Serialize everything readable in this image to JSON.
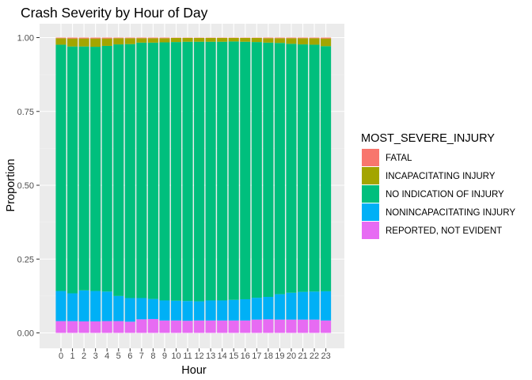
{
  "chart_data": {
    "type": "bar",
    "stacked": true,
    "title": "Crash Severity by Hour of Day",
    "xlabel": "Hour",
    "ylabel": "Proportion",
    "ylim": [
      0,
      1
    ],
    "yticks": [
      0,
      0.25,
      0.5,
      0.75,
      1
    ],
    "ytick_labels": [
      "0.00",
      "0.25",
      "0.50",
      "0.75",
      "1.00"
    ],
    "grid": true,
    "legend_position": "right",
    "legend_title": "MOST_SEVERE_INJURY",
    "categories": [
      "0",
      "1",
      "2",
      "3",
      "4",
      "5",
      "6",
      "7",
      "8",
      "9",
      "10",
      "11",
      "12",
      "13",
      "14",
      "15",
      "16",
      "17",
      "18",
      "19",
      "20",
      "21",
      "22",
      "23"
    ],
    "series": [
      {
        "name": "FATAL",
        "color": "#F8766D",
        "values": [
          0.002,
          0.003,
          0.003,
          0.003,
          0.003,
          0.002,
          0.002,
          0.002,
          0.002,
          0.002,
          0.001,
          0.001,
          0.001,
          0.001,
          0.001,
          0.001,
          0.001,
          0.001,
          0.002,
          0.002,
          0.002,
          0.002,
          0.002,
          0.003
        ]
      },
      {
        "name": "INCAPACITATING INJURY",
        "color": "#A3A500",
        "values": [
          0.022,
          0.027,
          0.027,
          0.028,
          0.025,
          0.021,
          0.02,
          0.015,
          0.015,
          0.014,
          0.014,
          0.013,
          0.013,
          0.013,
          0.013,
          0.012,
          0.013,
          0.014,
          0.015,
          0.016,
          0.019,
          0.021,
          0.022,
          0.026
        ]
      },
      {
        "name": "NO INDICATION OF INJURY",
        "color": "#00BF7D",
        "values": [
          0.834,
          0.836,
          0.826,
          0.827,
          0.832,
          0.852,
          0.86,
          0.865,
          0.868,
          0.874,
          0.876,
          0.878,
          0.879,
          0.876,
          0.876,
          0.875,
          0.872,
          0.866,
          0.861,
          0.851,
          0.843,
          0.838,
          0.836,
          0.83
        ]
      },
      {
        "name": "NONINCAPACITATING INJURY",
        "color": "#00B0F6",
        "values": [
          0.102,
          0.094,
          0.105,
          0.103,
          0.1,
          0.085,
          0.08,
          0.072,
          0.068,
          0.068,
          0.067,
          0.067,
          0.065,
          0.068,
          0.068,
          0.07,
          0.072,
          0.074,
          0.076,
          0.086,
          0.091,
          0.094,
          0.095,
          0.099
        ]
      },
      {
        "name": "REPORTED, NOT EVIDENT",
        "color": "#E76BF3",
        "values": [
          0.04,
          0.04,
          0.039,
          0.039,
          0.04,
          0.04,
          0.038,
          0.046,
          0.047,
          0.042,
          0.042,
          0.041,
          0.042,
          0.042,
          0.042,
          0.042,
          0.042,
          0.045,
          0.046,
          0.045,
          0.045,
          0.045,
          0.045,
          0.042
        ]
      }
    ]
  },
  "colors": {
    "panel_background": "#EBEBEB",
    "grid_major": "#FFFFFF",
    "grid_minor": "#F3F3F3"
  }
}
